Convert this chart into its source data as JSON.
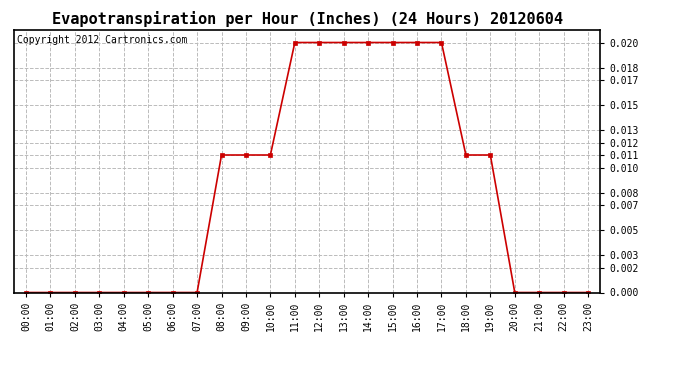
{
  "title": "Evapotranspiration per Hour (Inches) (24 Hours) 20120604",
  "copyright": "Copyright 2012 Cartronics.com",
  "hours": [
    0,
    1,
    2,
    3,
    4,
    5,
    6,
    7,
    8,
    9,
    10,
    11,
    12,
    13,
    14,
    15,
    16,
    17,
    18,
    19,
    20,
    21,
    22,
    23
  ],
  "values": [
    0.0,
    0.0,
    0.0,
    0.0,
    0.0,
    0.0,
    0.0,
    0.0,
    0.011,
    0.011,
    0.011,
    0.02,
    0.02,
    0.02,
    0.02,
    0.02,
    0.02,
    0.02,
    0.011,
    0.011,
    0.0,
    0.0,
    0.0,
    0.0
  ],
  "line_color": "#cc0000",
  "marker": "s",
  "marker_size": 3,
  "bg_color": "#ffffff",
  "grid_color": "#bbbbbb",
  "grid_style": "--",
  "ylim": [
    0.0,
    0.021
  ],
  "yticks": [
    0.0,
    0.002,
    0.003,
    0.005,
    0.007,
    0.008,
    0.01,
    0.011,
    0.012,
    0.013,
    0.015,
    0.017,
    0.018,
    0.02
  ],
  "title_fontsize": 11,
  "copyright_fontsize": 7,
  "tick_fontsize": 7,
  "marker_edge_color": "#cc0000"
}
